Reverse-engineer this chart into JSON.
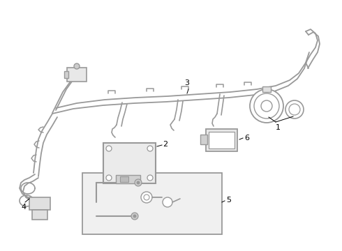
{
  "background_color": "#ffffff",
  "line_color": "#999999",
  "line_width": 1.4,
  "label_color": "#000000",
  "label_fontsize": 8,
  "fig_width": 4.9,
  "fig_height": 3.6,
  "dpi": 100
}
